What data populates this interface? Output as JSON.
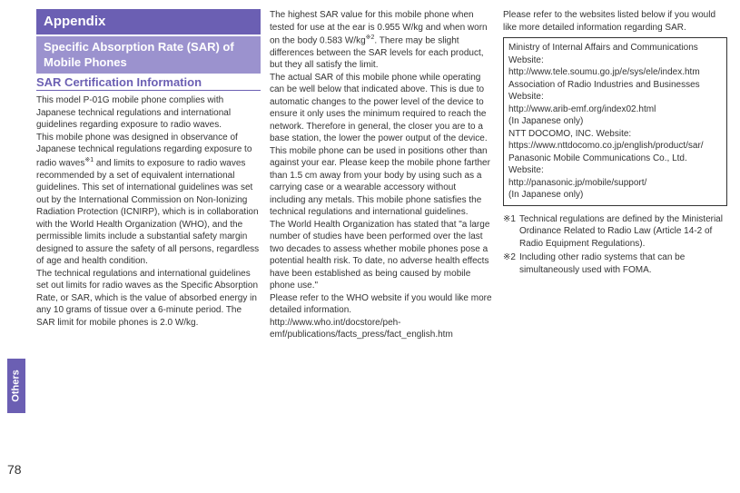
{
  "sidebar": {
    "tab_label": "Others",
    "page_number": "78"
  },
  "col1": {
    "appendix": "Appendix",
    "sar_title": "Specific Absorption Rate (SAR) of Mobile Phones",
    "cert_title": "SAR Certification Information",
    "para1": "This model P-01G mobile phone complies with Japanese technical regulations and international guidelines regarding exposure to radio waves.",
    "para2a": "This mobile phone was designed in observance of Japanese technical regulations regarding exposure to radio waves",
    "para2_sup": "※1",
    "para2b": " and limits to exposure to radio waves recommended by a set of equivalent international guidelines. This set of international guidelines was set out by the International Commission on Non-Ionizing Radiation Protection (ICNIRP), which is in collaboration with the World Health Organization (WHO), and the permissible limits include a substantial safety margin designed to assure the safety of all persons, regardless of age and health condition.",
    "para3": "The technical regulations and international guidelines set out limits for radio waves as the Specific Absorption Rate, or SAR, which is the value of absorbed energy in any 10 grams of tissue over a 6-minute period. The SAR limit for mobile phones is 2.0 W/kg."
  },
  "col2": {
    "para1a": "The highest SAR value for this mobile phone when tested for use at the ear is 0.955 W/kg and when worn on the body 0.583 W/kg",
    "para1_sup": "※2",
    "para1b": ". There may be slight differences between the SAR levels for each product, but they all satisfy the limit.",
    "para2": "The actual SAR of this mobile phone while operating can be well below that indicated above. This is due to automatic changes to the power level of the device to ensure it only uses the minimum required to reach the network. Therefore in general, the closer you are to a base station, the lower the power output of the device.",
    "para3": "This mobile phone can be used in positions other than against your ear. Please keep the mobile phone farther than 1.5 cm away from your body by using such as a carrying case or a wearable accessory without including any metals. This mobile phone satisfies the technical regulations and international guidelines.",
    "para4": "The World Health Organization has stated that \"a large number of studies have been performed over the last two decades to assess whether mobile phones pose a potential health risk. To date, no adverse health effects have been established as being caused by mobile phone use.\"",
    "para5": "Please refer to the WHO website if you would like more detailed information.",
    "url": "http://www.who.int/docstore/peh-emf/publications/facts_press/fact_english.htm"
  },
  "col3": {
    "intro": "Please refer to the websites listed below if you would like more detailed information regarding SAR.",
    "box": {
      "l1": "Ministry of Internal Affairs and Communications Website:",
      "l2": "http://www.tele.soumu.go.jp/e/sys/ele/index.htm",
      "l3": "Association of Radio Industries and Businesses Website:",
      "l4": "http://www.arib-emf.org/index02.html",
      "l5": "(In Japanese only)",
      "l6": "NTT DOCOMO, INC. Website:",
      "l7": "https://www.nttdocomo.co.jp/english/product/sar/",
      "l8": "Panasonic Mobile Communications Co., Ltd. Website:",
      "l9": "http://panasonic.jp/mobile/support/",
      "l10": "(In Japanese only)"
    },
    "fn1_mark": "※1",
    "fn1_text": "Technical regulations are defined by the Ministerial Ordinance Related to Radio Law (Article 14-2 of Radio Equipment Regulations).",
    "fn2_mark": "※2",
    "fn2_text": "Including other radio systems that can be simultaneously used with FOMA."
  }
}
